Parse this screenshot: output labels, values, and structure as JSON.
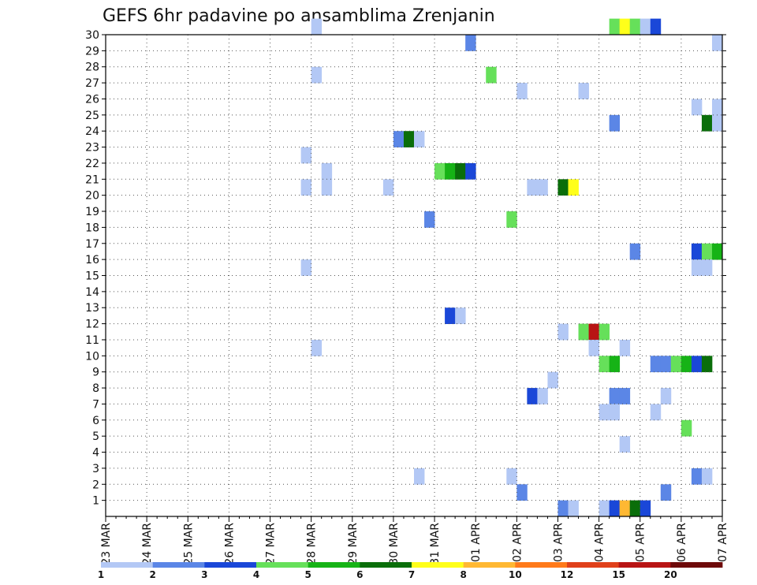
{
  "chart_data": {
    "type": "heatmap",
    "title": "GEFS 6hr padavine po ansamblima Zrenjanin",
    "x_ticks": [
      "23 MAR",
      "24 MAR",
      "25 MAR",
      "26 MAR",
      "27 MAR",
      "28 MAR",
      "29 MAR",
      "30 MAR",
      "31 MAR",
      "01 APR",
      "02 APR",
      "03 APR",
      "04 APR",
      "05 APR",
      "06 APR",
      "07 APR"
    ],
    "y_ticks": [
      1,
      2,
      3,
      4,
      5,
      6,
      7,
      8,
      9,
      10,
      11,
      12,
      13,
      14,
      15,
      16,
      17,
      18,
      19,
      20,
      21,
      22,
      23,
      24,
      25,
      26,
      27,
      28,
      29,
      30
    ],
    "xlim": [
      0,
      60
    ],
    "ylim": [
      0,
      30
    ],
    "grid": true,
    "legend": {
      "position": "bottom",
      "labels": [
        "1",
        "2",
        "3",
        "4",
        "5",
        "6",
        "7",
        "8",
        "10",
        "12",
        "15",
        "20"
      ],
      "colors": [
        "#b3c8f5",
        "#5b86e6",
        "#1a47d8",
        "#66e05a",
        "#16b316",
        "#0a6e0a",
        "#ffff1a",
        "#ffb833",
        "#ff7a1a",
        "#e0401a",
        "#b81414",
        "#6e0a0a"
      ]
    },
    "cells": [
      {
        "t": 20,
        "m": 30,
        "c": 1
      },
      {
        "t": 49,
        "m": 30,
        "c": 4
      },
      {
        "t": 50,
        "m": 30,
        "c": 7
      },
      {
        "t": 51,
        "m": 30,
        "c": 4
      },
      {
        "t": 52,
        "m": 30,
        "c": 1
      },
      {
        "t": 53,
        "m": 30,
        "c": 3
      },
      {
        "t": 35,
        "m": 29,
        "c": 2
      },
      {
        "t": 59,
        "m": 29,
        "c": 1
      },
      {
        "t": 20,
        "m": 27,
        "c": 1
      },
      {
        "t": 37,
        "m": 27,
        "c": 4
      },
      {
        "t": 40,
        "m": 26,
        "c": 1
      },
      {
        "t": 46,
        "m": 26,
        "c": 1
      },
      {
        "t": 57,
        "m": 25,
        "c": 1
      },
      {
        "t": 59,
        "m": 25,
        "c": 1
      },
      {
        "t": 49,
        "m": 24,
        "c": 2
      },
      {
        "t": 58,
        "m": 24,
        "c": 6
      },
      {
        "t": 59,
        "m": 24,
        "c": 1
      },
      {
        "t": 28,
        "m": 23,
        "c": 2
      },
      {
        "t": 29,
        "m": 23,
        "c": 6
      },
      {
        "t": 30,
        "m": 23,
        "c": 1
      },
      {
        "t": 19,
        "m": 22,
        "c": 1
      },
      {
        "t": 21,
        "m": 21,
        "c": 1
      },
      {
        "t": 32,
        "m": 21,
        "c": 4
      },
      {
        "t": 33,
        "m": 21,
        "c": 5
      },
      {
        "t": 34,
        "m": 21,
        "c": 6
      },
      {
        "t": 35,
        "m": 21,
        "c": 3
      },
      {
        "t": 19,
        "m": 20,
        "c": 1
      },
      {
        "t": 21,
        "m": 20,
        "c": 1
      },
      {
        "t": 27,
        "m": 20,
        "c": 1
      },
      {
        "t": 41,
        "m": 20,
        "c": 1
      },
      {
        "t": 42,
        "m": 20,
        "c": 1
      },
      {
        "t": 44,
        "m": 20,
        "c": 6
      },
      {
        "t": 45,
        "m": 20,
        "c": 7
      },
      {
        "t": 31,
        "m": 18,
        "c": 2
      },
      {
        "t": 39,
        "m": 18,
        "c": 4
      },
      {
        "t": 51,
        "m": 16,
        "c": 2
      },
      {
        "t": 57,
        "m": 16,
        "c": 3
      },
      {
        "t": 58,
        "m": 16,
        "c": 4
      },
      {
        "t": 59,
        "m": 16,
        "c": 5
      },
      {
        "t": 19,
        "m": 15,
        "c": 1
      },
      {
        "t": 57,
        "m": 15,
        "c": 1
      },
      {
        "t": 58,
        "m": 15,
        "c": 1
      },
      {
        "t": 33,
        "m": 12,
        "c": 3
      },
      {
        "t": 34,
        "m": 12,
        "c": 1
      },
      {
        "t": 44,
        "m": 11,
        "c": 1
      },
      {
        "t": 46,
        "m": 11,
        "c": 4
      },
      {
        "t": 47,
        "m": 11,
        "c": 11
      },
      {
        "t": 48,
        "m": 11,
        "c": 4
      },
      {
        "t": 20,
        "m": 10,
        "c": 1
      },
      {
        "t": 47,
        "m": 10,
        "c": 1
      },
      {
        "t": 50,
        "m": 10,
        "c": 1
      },
      {
        "t": 48,
        "m": 9,
        "c": 4
      },
      {
        "t": 49,
        "m": 9,
        "c": 5
      },
      {
        "t": 53,
        "m": 9,
        "c": 2
      },
      {
        "t": 54,
        "m": 9,
        "c": 2
      },
      {
        "t": 55,
        "m": 9,
        "c": 4
      },
      {
        "t": 56,
        "m": 9,
        "c": 5
      },
      {
        "t": 57,
        "m": 9,
        "c": 3
      },
      {
        "t": 58,
        "m": 9,
        "c": 6
      },
      {
        "t": 43,
        "m": 8,
        "c": 1
      },
      {
        "t": 41,
        "m": 7,
        "c": 3
      },
      {
        "t": 42,
        "m": 7,
        "c": 1
      },
      {
        "t": 49,
        "m": 7,
        "c": 2
      },
      {
        "t": 50,
        "m": 7,
        "c": 2
      },
      {
        "t": 54,
        "m": 7,
        "c": 1
      },
      {
        "t": 48,
        "m": 6,
        "c": 1
      },
      {
        "t": 49,
        "m": 6,
        "c": 1
      },
      {
        "t": 53,
        "m": 6,
        "c": 1
      },
      {
        "t": 56,
        "m": 5,
        "c": 4
      },
      {
        "t": 50,
        "m": 4,
        "c": 1
      },
      {
        "t": 30,
        "m": 2,
        "c": 1
      },
      {
        "t": 39,
        "m": 2,
        "c": 1
      },
      {
        "t": 57,
        "m": 2,
        "c": 2
      },
      {
        "t": 58,
        "m": 2,
        "c": 1
      },
      {
        "t": 40,
        "m": 1,
        "c": 2
      },
      {
        "t": 54,
        "m": 1,
        "c": 2
      },
      {
        "t": 44,
        "m": 0,
        "c": 2
      },
      {
        "t": 45,
        "m": 0,
        "c": 1
      },
      {
        "t": 48,
        "m": 0,
        "c": 1
      },
      {
        "t": 49,
        "m": 0,
        "c": 3
      },
      {
        "t": 50,
        "m": 0,
        "c": 8
      },
      {
        "t": 51,
        "m": 0,
        "c": 6
      },
      {
        "t": 52,
        "m": 0,
        "c": 3
      }
    ]
  }
}
